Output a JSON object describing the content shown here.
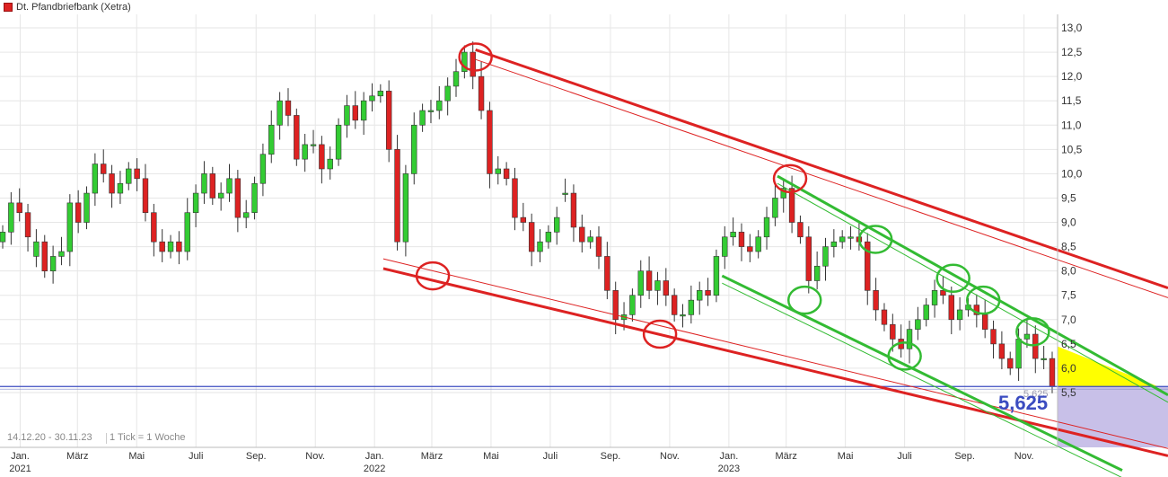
{
  "legend": {
    "title": "Dt. Pfandbriefbank (Xetra)"
  },
  "footer": {
    "range": "14.12.20 - 30.11.23",
    "tick": "1 Tick = 1 Woche"
  },
  "last_price": {
    "value": "5,625",
    "small_value": "5,625"
  },
  "colors": {
    "up": "#33cc33",
    "down": "#dd2222",
    "channel_red": "#dd2222",
    "channel_green": "#33bb33",
    "fill_yellow": "#ffff00",
    "fill_lavender": "#c8c0e8",
    "price_line": "#3b4cc0"
  },
  "chart_data": {
    "type": "candlestick",
    "title": "Dt. Pfandbriefbank (Xetra)",
    "ylim": [
      5.0,
      13.2
    ],
    "y_ticks": [
      "13,0",
      "12,5",
      "12,0",
      "11,5",
      "11,0",
      "10,5",
      "10,0",
      "9,5",
      "9,0",
      "8,5",
      "8,0",
      "7,5",
      "7,0",
      "6,5",
      "6,0",
      "5,5"
    ],
    "y_tick_values": [
      13.0,
      12.5,
      12.0,
      11.5,
      11.0,
      10.5,
      10.0,
      9.5,
      9.0,
      8.5,
      8.0,
      7.5,
      7.0,
      6.5,
      6.0,
      5.5
    ],
    "x_range": [
      "2020-12-14",
      "2023-11-30"
    ],
    "x_ticks": [
      {
        "date": "2021-01-01",
        "label": "Jan.",
        "year": "2021"
      },
      {
        "date": "2021-03-01",
        "label": "März",
        "year": ""
      },
      {
        "date": "2021-05-01",
        "label": "Mai",
        "year": ""
      },
      {
        "date": "2021-07-01",
        "label": "Juli",
        "year": ""
      },
      {
        "date": "2021-09-01",
        "label": "Sep.",
        "year": ""
      },
      {
        "date": "2021-11-01",
        "label": "Nov.",
        "year": ""
      },
      {
        "date": "2022-01-01",
        "label": "Jan.",
        "year": "2022"
      },
      {
        "date": "2022-03-01",
        "label": "März",
        "year": ""
      },
      {
        "date": "2022-05-01",
        "label": "Mai",
        "year": ""
      },
      {
        "date": "2022-07-01",
        "label": "Juli",
        "year": ""
      },
      {
        "date": "2022-09-01",
        "label": "Sep.",
        "year": ""
      },
      {
        "date": "2022-11-01",
        "label": "Nov.",
        "year": ""
      },
      {
        "date": "2023-01-01",
        "label": "Jan.",
        "year": "2023"
      },
      {
        "date": "2023-03-01",
        "label": "März",
        "year": ""
      },
      {
        "date": "2023-05-01",
        "label": "Mai",
        "year": ""
      },
      {
        "date": "2023-07-01",
        "label": "Juli",
        "year": ""
      },
      {
        "date": "2023-09-01",
        "label": "Sep.",
        "year": ""
      },
      {
        "date": "2023-11-01",
        "label": "Nov.",
        "year": ""
      }
    ],
    "last_price": 5.625,
    "closes": [
      8.8,
      9.4,
      9.2,
      8.7,
      8.6,
      8.0,
      8.3,
      8.4,
      9.4,
      9.0,
      9.6,
      10.2,
      10.0,
      9.6,
      9.8,
      10.1,
      9.9,
      9.2,
      8.6,
      8.4,
      8.6,
      8.4,
      9.2,
      9.6,
      10.0,
      9.5,
      9.6,
      9.9,
      9.1,
      9.2,
      9.8,
      10.4,
      11.0,
      11.5,
      11.2,
      10.3,
      10.6,
      10.6,
      10.1,
      10.3,
      11.0,
      11.4,
      11.1,
      11.5,
      11.6,
      11.7,
      10.5,
      8.6,
      10.0,
      11.0,
      11.3,
      11.3,
      11.5,
      11.8,
      12.1,
      12.5,
      12.0,
      11.3,
      10.0,
      10.1,
      9.9,
      9.1,
      9.0,
      8.4,
      8.6,
      8.8,
      9.1,
      9.6,
      8.9,
      8.6,
      8.7,
      8.3,
      7.6,
      7.0,
      7.1,
      7.5,
      8.0,
      7.6,
      7.8,
      7.5,
      7.1,
      7.1,
      7.4,
      7.6,
      7.5,
      8.3,
      8.7,
      8.8,
      8.5,
      8.4,
      8.7,
      9.1,
      9.5,
      9.7,
      9.0,
      8.7,
      7.8,
      8.1,
      8.5,
      8.6,
      8.7,
      8.7,
      8.6,
      7.6,
      7.2,
      6.9,
      6.6,
      6.4,
      6.8,
      7.0,
      7.3,
      7.6,
      7.5,
      7.0,
      7.2,
      7.3,
      7.1,
      6.8,
      6.5,
      6.2,
      6.0,
      6.6,
      6.7,
      6.2,
      6.2,
      5.625
    ],
    "opens": [
      8.6,
      8.8,
      9.4,
      9.2,
      8.3,
      8.6,
      8.0,
      8.3,
      8.4,
      9.4,
      9.0,
      9.6,
      10.2,
      10.0,
      9.6,
      9.8,
      10.1,
      9.9,
      9.2,
      8.6,
      8.4,
      8.6,
      8.4,
      9.2,
      9.6,
      10.0,
      9.5,
      9.6,
      9.9,
      9.1,
      9.2,
      9.8,
      10.4,
      11.0,
      11.5,
      11.2,
      10.3,
      10.6,
      10.6,
      10.1,
      10.3,
      11.0,
      11.4,
      11.1,
      11.5,
      11.6,
      11.7,
      10.5,
      8.6,
      10.0,
      11.0,
      11.3,
      11.3,
      11.5,
      11.8,
      12.1,
      12.5,
      12.0,
      11.3,
      10.0,
      10.1,
      9.9,
      9.1,
      9.0,
      8.4,
      8.6,
      8.8,
      9.6,
      9.6,
      8.9,
      8.6,
      8.7,
      8.3,
      7.6,
      7.0,
      7.1,
      7.5,
      8.0,
      7.6,
      7.8,
      7.5,
      7.1,
      7.1,
      7.4,
      7.6,
      7.5,
      8.3,
      8.7,
      8.8,
      8.5,
      8.4,
      8.7,
      9.1,
      9.5,
      9.7,
      9.0,
      8.7,
      7.8,
      8.1,
      8.5,
      8.6,
      8.7,
      8.7,
      8.6,
      7.6,
      7.2,
      6.9,
      6.6,
      6.4,
      6.8,
      7.0,
      7.3,
      7.6,
      7.5,
      7.0,
      7.2,
      7.3,
      7.1,
      6.8,
      6.5,
      6.2,
      6.0,
      6.6,
      6.7,
      6.2,
      6.2
    ]
  }
}
